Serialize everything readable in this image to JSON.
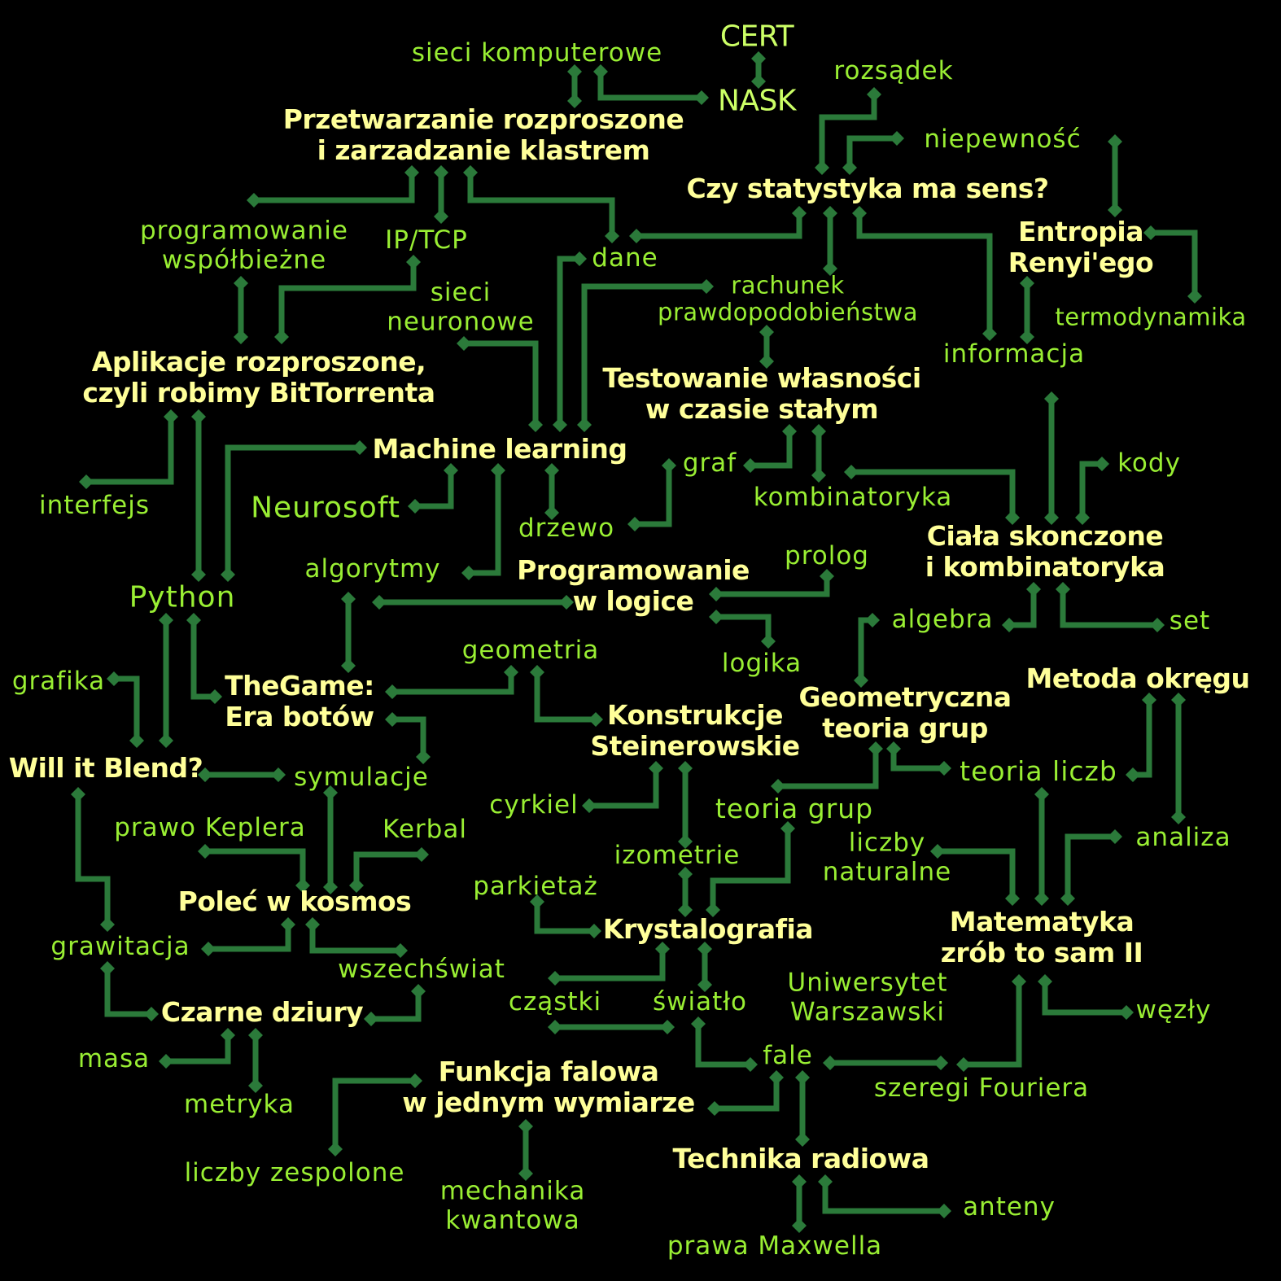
{
  "colors": {
    "background": "#000000",
    "major_node": "#ffff99",
    "minor_node": "#99ee33",
    "connector": "#2b7a3a"
  },
  "nodes": {
    "cert": "CERT",
    "nask": "NASK",
    "sieci_komputerowe": "sieci komputerowe",
    "rozsadek": "rozsądek",
    "niepewnosc": "niepewność",
    "przetwarzanie_1": "Przetwarzanie rozproszone",
    "przetwarzanie_2": "i zarzadzanie klastrem",
    "czy_statystyka": "Czy statystyka ma sens?",
    "programowanie_wspolbiezne_1": "programowanie",
    "programowanie_wspolbiezne_2": "współbieżne",
    "ip_tcp": "IP/TCP",
    "dane": "dane",
    "entropia_1": "Entropia",
    "entropia_2": "Renyi'ego",
    "sieci_neuronowe_1": "sieci",
    "sieci_neuronowe_2": "neuronowe",
    "rachunek_1": "rachunek",
    "rachunek_2": "prawdopodobieństwa",
    "termodynamika": "termodynamika",
    "aplikacje_1": "Aplikacje rozproszone,",
    "aplikacje_2": "czyli robimy BitTorrenta",
    "informacja": "informacja",
    "testowanie_1": "Testowanie własności",
    "testowanie_2": "w czasie stałym",
    "machine_learning": "Machine learning",
    "graf": "graf",
    "kody": "kody",
    "interfejs": "interfejs",
    "neurosoft": "Neurosoft",
    "kombinatoryka": "kombinatoryka",
    "drzewo": "drzewo",
    "ciala_1": "Ciała skonczone",
    "ciala_2": "i kombinatoryka",
    "prolog": "prolog",
    "algorytmy": "algorytmy",
    "programowanie_logice_1": "Programowanie",
    "programowanie_logice_2": "w logice",
    "python": "Python",
    "algebra": "algebra",
    "set": "set",
    "logika": "logika",
    "geometria": "geometria",
    "metoda_okregu": "Metoda okręgu",
    "grafika": "grafika",
    "thegame_1": "TheGame:",
    "thegame_2": "Era botów",
    "konstrukcje_1": "Konstrukcje",
    "konstrukcje_2": "Steinerowskie",
    "geometryczna_1": "Geometryczna",
    "geometryczna_2": "teoria grup",
    "will_it_blend": "Will it Blend?",
    "symulacje": "symulacje",
    "teoria_liczb": "teoria liczb",
    "cyrkiel": "cyrkiel",
    "teoria_grup": "teoria grup",
    "prawo_keplera": "prawo Keplera",
    "kerbal": "Kerbal",
    "liczby_naturalne_1": "liczby",
    "liczby_naturalne_2": "naturalne",
    "analiza": "analiza",
    "izometrie": "izometrie",
    "polec_w_kosmos": "Poleć w kosmos",
    "parkietaz": "parkietaż",
    "krystalografia": "Krystalografia",
    "matematyka_1": "Matematyka",
    "matematyka_2": "zrób to sam II",
    "grawitacja": "grawitacja",
    "wszechswiat": "wszechświat",
    "uniwersytet_1": "Uniwersytet",
    "uniwersytet_2": "Warszawski",
    "czastki": "cząstki",
    "swiatlo": "światło",
    "wezly": "węzły",
    "czarne_dziury": "Czarne dziury",
    "masa": "masa",
    "fale": "fale",
    "funkcja_1": "Funkcja falowa",
    "funkcja_2": "w jednym wymiarze",
    "szeregi": "szeregi Fouriera",
    "metryka": "metryka",
    "liczby_zespolone": "liczby zespolone",
    "technika_radiowa": "Technika radiowa",
    "mechanika_1": "mechanika",
    "mechanika_2": "kwantowa",
    "anteny": "anteny",
    "prawa_maxwella": "prawa Maxwella"
  }
}
